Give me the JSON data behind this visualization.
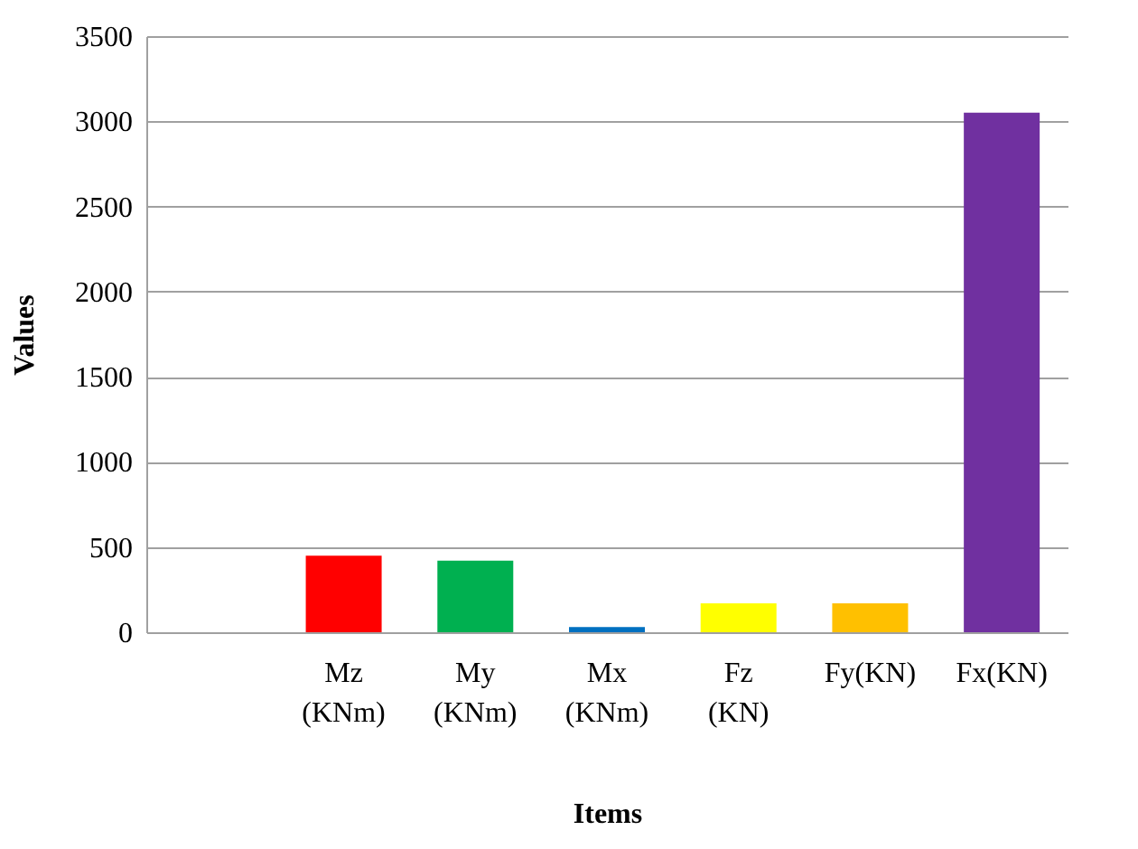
{
  "chart_data": {
    "type": "bar",
    "xlabel": "Items",
    "ylabel": "Values",
    "categories": [
      null,
      "Mz\n(KNm)",
      "My\n(KNm)",
      "Mx\n(KNm)",
      "Fz\n(KN)",
      "Fy(KN)",
      "Fx(KN)"
    ],
    "values": [
      null,
      450,
      420,
      30,
      170,
      170,
      3050
    ],
    "colors": [
      "#ffffff",
      "#ff0000",
      "#00b050",
      "#0070c0",
      "#ffff00",
      "#ffc000",
      "#7030a0"
    ],
    "ylim": [
      0,
      3500
    ],
    "yticks": [
      0,
      500,
      1000,
      1500,
      2000,
      2500,
      3000,
      3500
    ],
    "grid": "y",
    "legend": false
  }
}
